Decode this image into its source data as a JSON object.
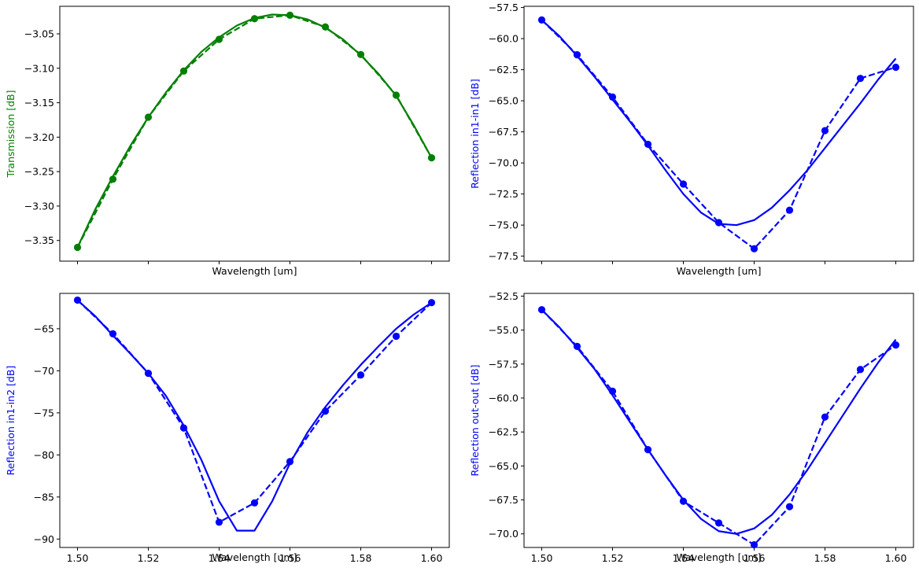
{
  "chart_data": [
    {
      "type": "line",
      "xlabel": "Wavelength [um]",
      "ylabel": "Transmission [dB]",
      "label_color": "#008000",
      "color": "#008000",
      "xlim": [
        1.495,
        1.605
      ],
      "ylim": [
        -3.38,
        -3.01
      ],
      "yticks": [
        -3.35,
        -3.3,
        -3.25,
        -3.2,
        -3.15,
        -3.1,
        -3.05
      ],
      "ytick_labels": [
        "−3.35",
        "−3.30",
        "−3.25",
        "−3.20",
        "−3.15",
        "−3.10",
        "−3.05"
      ],
      "xticks": [
        1.5,
        1.52,
        1.54,
        1.56,
        1.58,
        1.6
      ],
      "xtick_labels": [],
      "series": [
        {
          "style": "dashed-markers",
          "x": [
            1.5,
            1.51,
            1.52,
            1.53,
            1.54,
            1.55,
            1.56,
            1.57,
            1.58,
            1.59,
            1.6
          ],
          "y": [
            -3.36,
            -3.261,
            -3.171,
            -3.104,
            -3.058,
            -3.028,
            -3.023,
            -3.04,
            -3.08,
            -3.139,
            -3.23
          ]
        },
        {
          "style": "solid",
          "x": [
            1.5,
            1.505,
            1.51,
            1.515,
            1.52,
            1.525,
            1.53,
            1.535,
            1.54,
            1.545,
            1.55,
            1.555,
            1.56,
            1.565,
            1.57,
            1.575,
            1.58,
            1.585,
            1.59,
            1.595,
            1.6
          ],
          "y": [
            -3.36,
            -3.305,
            -3.257,
            -3.212,
            -3.171,
            -3.135,
            -3.103,
            -3.076,
            -3.055,
            -3.038,
            -3.027,
            -3.022,
            -3.023,
            -3.029,
            -3.041,
            -3.058,
            -3.081,
            -3.108,
            -3.14,
            -3.183,
            -3.23
          ]
        }
      ]
    },
    {
      "type": "line",
      "xlabel": "Wavelength [um]",
      "ylabel": "Reflection in1-in1 [dB]",
      "label_color": "#0000ff",
      "color": "#0000ff",
      "xlim": [
        1.495,
        1.605
      ],
      "ylim": [
        -77.9,
        -57.4
      ],
      "yticks": [
        -77.5,
        -75.0,
        -72.5,
        -70.0,
        -67.5,
        -65.0,
        -62.5,
        -60.0,
        -57.5
      ],
      "ytick_labels": [
        "−77.5",
        "−75.0",
        "−72.5",
        "−70.0",
        "−67.5",
        "−65.0",
        "−62.5",
        "−60.0",
        "−57.5"
      ],
      "xticks": [
        1.5,
        1.52,
        1.54,
        1.56,
        1.58,
        1.6
      ],
      "xtick_labels": [],
      "series": [
        {
          "style": "dashed-markers",
          "x": [
            1.5,
            1.51,
            1.52,
            1.53,
            1.54,
            1.55,
            1.56,
            1.57,
            1.58,
            1.59,
            1.6
          ],
          "y": [
            -58.5,
            -61.3,
            -64.7,
            -68.5,
            -71.7,
            -74.8,
            -76.9,
            -73.8,
            -67.4,
            -63.2,
            -62.3
          ]
        },
        {
          "style": "solid",
          "x": [
            1.5,
            1.505,
            1.51,
            1.515,
            1.52,
            1.525,
            1.53,
            1.535,
            1.54,
            1.545,
            1.55,
            1.555,
            1.56,
            1.565,
            1.57,
            1.575,
            1.58,
            1.585,
            1.59,
            1.595,
            1.6
          ],
          "y": [
            -58.5,
            -59.8,
            -61.4,
            -63.1,
            -64.9,
            -66.7,
            -68.6,
            -70.6,
            -72.5,
            -74.0,
            -74.9,
            -75.0,
            -74.6,
            -73.6,
            -72.2,
            -70.6,
            -68.8,
            -67.0,
            -65.2,
            -63.3,
            -61.6
          ]
        }
      ]
    },
    {
      "type": "line",
      "xlabel": "Wavelength [um]",
      "ylabel": "Reflection in1-in2 [dB]",
      "label_color": "#0000ff",
      "color": "#0000ff",
      "xlim": [
        1.495,
        1.605
      ],
      "ylim": [
        -91.0,
        -60.8
      ],
      "yticks": [
        -90,
        -85,
        -80,
        -75,
        -70,
        -65
      ],
      "ytick_labels": [
        "−90",
        "−85",
        "−80",
        "−75",
        "−70",
        "−65"
      ],
      "xticks": [
        1.5,
        1.52,
        1.54,
        1.56,
        1.58,
        1.6
      ],
      "xtick_labels": [
        "1.50",
        "1.52",
        "1.54",
        "1.56",
        "1.58",
        "1.60"
      ],
      "series": [
        {
          "style": "dashed-markers",
          "x": [
            1.5,
            1.51,
            1.52,
            1.53,
            1.54,
            1.55,
            1.56,
            1.57,
            1.58,
            1.59,
            1.6
          ],
          "y": [
            -61.6,
            -65.6,
            -70.3,
            -76.8,
            -88.0,
            -85.7,
            -80.8,
            -74.8,
            -70.5,
            -65.9,
            -61.9
          ]
        },
        {
          "style": "solid",
          "x": [
            1.5,
            1.505,
            1.51,
            1.515,
            1.52,
            1.525,
            1.53,
            1.535,
            1.54,
            1.545,
            1.55,
            1.555,
            1.56,
            1.565,
            1.57,
            1.575,
            1.58,
            1.585,
            1.59,
            1.595,
            1.6
          ],
          "y": [
            -61.6,
            -63.5,
            -65.8,
            -68.0,
            -70.3,
            -73.0,
            -76.5,
            -80.6,
            -85.5,
            -89.0,
            -89.0,
            -85.5,
            -81.0,
            -77.3,
            -74.3,
            -71.7,
            -69.3,
            -67.1,
            -65.0,
            -63.3,
            -61.9
          ]
        }
      ]
    },
    {
      "type": "line",
      "xlabel": "Wavelength [um]",
      "ylabel": "Reflection out-out [dB]",
      "label_color": "#0000ff",
      "color": "#0000ff",
      "xlim": [
        1.495,
        1.605
      ],
      "ylim": [
        -71.0,
        -52.3
      ],
      "yticks": [
        -70.0,
        -67.5,
        -65.0,
        -62.5,
        -60.0,
        -57.5,
        -55.0,
        -52.5
      ],
      "ytick_labels": [
        "−70.0",
        "−67.5",
        "−65.0",
        "−62.5",
        "−60.0",
        "−57.5",
        "−55.0",
        "−52.5"
      ],
      "xticks": [
        1.5,
        1.52,
        1.54,
        1.56,
        1.58,
        1.6
      ],
      "xtick_labels": [
        "1.50",
        "1.52",
        "1.54",
        "1.56",
        "1.58",
        "1.60"
      ],
      "series": [
        {
          "style": "dashed-markers",
          "x": [
            1.5,
            1.51,
            1.52,
            1.53,
            1.54,
            1.55,
            1.56,
            1.57,
            1.58,
            1.59,
            1.6
          ],
          "y": [
            -53.5,
            -56.2,
            -59.5,
            -63.8,
            -67.6,
            -69.2,
            -70.8,
            -68.0,
            -61.4,
            -57.9,
            -56.1
          ]
        },
        {
          "style": "solid",
          "x": [
            1.5,
            1.505,
            1.51,
            1.515,
            1.52,
            1.525,
            1.53,
            1.535,
            1.54,
            1.545,
            1.55,
            1.555,
            1.56,
            1.565,
            1.57,
            1.575,
            1.58,
            1.585,
            1.59,
            1.595,
            1.6
          ],
          "y": [
            -53.5,
            -54.8,
            -56.3,
            -57.9,
            -59.8,
            -61.8,
            -63.8,
            -65.7,
            -67.5,
            -68.9,
            -69.8,
            -70.0,
            -69.6,
            -68.6,
            -67.1,
            -65.3,
            -63.3,
            -61.3,
            -59.3,
            -57.4,
            -55.7
          ]
        }
      ]
    }
  ]
}
